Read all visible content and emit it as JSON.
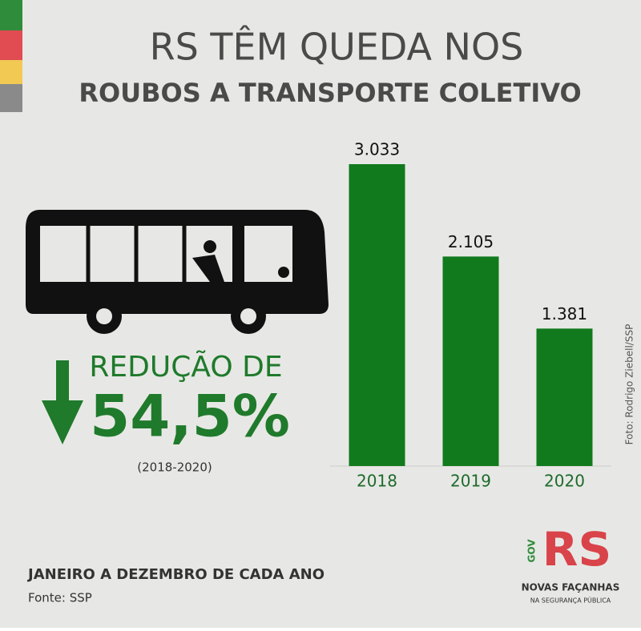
{
  "header": {
    "line1": "RS TÊM QUEDA NOS",
    "line2": "ROUBOS A TRANSPORTE COLETIVO"
  },
  "chart_data": {
    "type": "bar",
    "categories": [
      "2018",
      "2019",
      "2020"
    ],
    "values": [
      3033,
      2105,
      1381
    ],
    "value_labels": [
      "3.033",
      "2.105",
      "1.381"
    ],
    "color": "#107a1d"
  },
  "highlight": {
    "label": "REDUÇÃO DE",
    "value": "54,5%",
    "period": "(2018-2020)"
  },
  "footer": {
    "note": "JANEIRO A DEZEMBRO DE CADA ANO",
    "source": "Fonte: SSP"
  },
  "photo_credit": "Foto: Rodrigo Ziebell/SSP",
  "logo": {
    "gov": "GOV",
    "rs": "RS",
    "slogan": "NOVAS FAÇANHAS",
    "subtitle": "NA SEGURANÇA PÚBLICA"
  }
}
